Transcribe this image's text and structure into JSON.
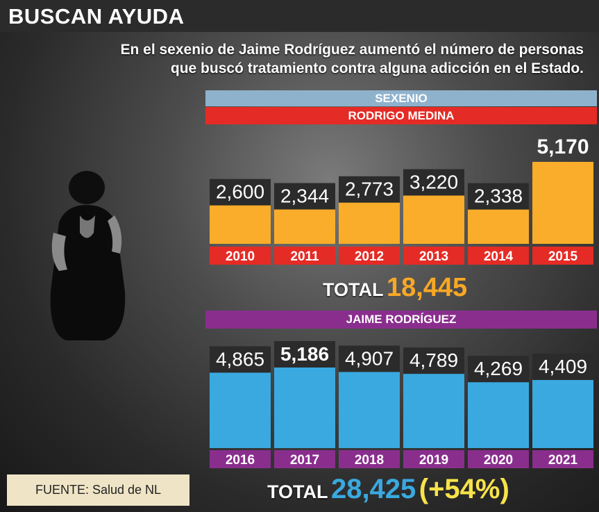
{
  "header": {
    "title": "BUSCAN AYUDA",
    "subtitle": "En el sexenio de Jaime Rodríguez aumentó el número de personas que buscó tratamiento contra alguna adicción en el Estado."
  },
  "bands": {
    "sexenio": "SEXENIO",
    "medina": "RODRIGO MEDINA",
    "rodriguez": "JAIME RODRÍGUEZ"
  },
  "totals": {
    "label": "TOTAL",
    "medina_total": "18,445",
    "rodriguez_total": "28,425",
    "increase": "(+54%)"
  },
  "source": "FUENTE: Salud de NL",
  "colors": {
    "medina_bar": "#f9ad2a",
    "rodriguez_bar": "#3aa9e0",
    "medina_year_bg": "#e52b25",
    "rodriguez_year_bg": "#8a2e8e",
    "value_box": "#2b2b2b"
  },
  "chart_data": [
    {
      "type": "bar",
      "categories": [
        "2010",
        "2011",
        "2012",
        "2013",
        "2014",
        "2015"
      ],
      "values": [
        2600,
        2344,
        2773,
        3220,
        2338,
        5170
      ],
      "labels": [
        "2,600",
        "2,344",
        "2,773",
        "3,220",
        "2,338",
        "5,170"
      ],
      "title": "",
      "xlabel": "",
      "ylabel": ""
    },
    {
      "type": "bar",
      "categories": [
        "2016",
        "2017",
        "2018",
        "2019",
        "2020",
        "2021"
      ],
      "values": [
        4865,
        5186,
        4907,
        4789,
        4269,
        4409
      ],
      "labels": [
        "4,865",
        "5,186",
        "4,907",
        "4,789",
        "4,269",
        "4,409"
      ],
      "title": "",
      "xlabel": "",
      "ylabel": ""
    }
  ]
}
